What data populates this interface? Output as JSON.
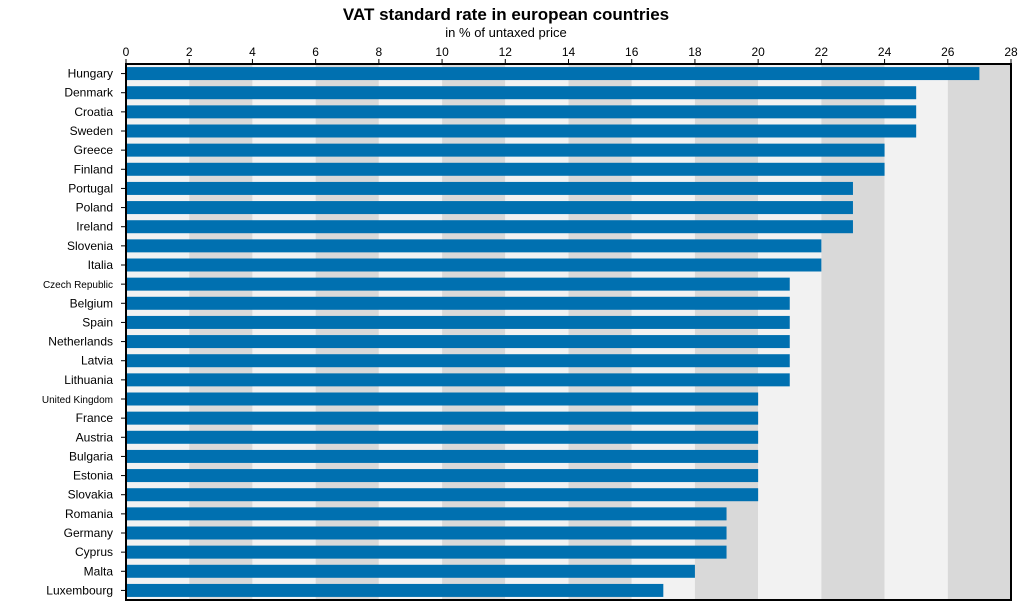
{
  "chart_data": {
    "type": "bar",
    "orientation": "horizontal",
    "title": "VAT standard rate in european countries",
    "subtitle": "in % of untaxed price",
    "xlim": [
      0,
      28
    ],
    "x_ticks": [
      0,
      2,
      4,
      6,
      8,
      10,
      12,
      14,
      16,
      18,
      20,
      22,
      24,
      26,
      28
    ],
    "x_axis_position": "top",
    "grid": "alternating bands",
    "bar_color": "#0070b0",
    "band_colors": [
      "#f2f2f2",
      "#d9d9d9"
    ],
    "categories": [
      "Hungary",
      "Denmark",
      "Croatia",
      "Sweden",
      "Greece",
      "Finland",
      "Portugal",
      "Poland",
      "Ireland",
      "Slovenia",
      "Italia",
      "Czech Republic",
      "Belgium",
      "Spain",
      "Netherlands",
      "Latvia",
      "Lithuania",
      "United Kingdom",
      "France",
      "Austria",
      "Bulgaria",
      "Estonia",
      "Slovakia",
      "Romania",
      "Germany",
      "Cyprus",
      "Malta",
      "Luxembourg"
    ],
    "values": [
      27,
      25,
      25,
      25,
      24,
      24,
      23,
      23,
      23,
      22,
      22,
      21,
      21,
      21,
      21,
      21,
      21,
      20,
      20,
      20,
      20,
      20,
      20,
      19,
      19,
      19,
      18,
      17
    ]
  }
}
